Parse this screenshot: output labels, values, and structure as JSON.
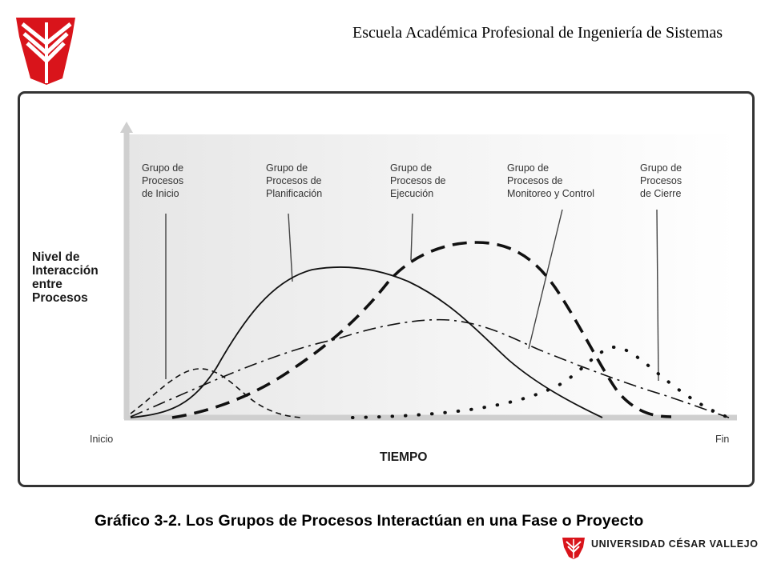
{
  "header": {
    "title": "Escuela Académica Profesional de Ingeniería de Sistemas"
  },
  "diagram": {
    "y_label": [
      "Nivel de",
      "Interacción",
      "entre",
      "Procesos"
    ],
    "x_label": "TIEMPO",
    "x_start": "Inicio",
    "x_end": "Fin",
    "groups": [
      {
        "name": "inicio",
        "label": [
          "Grupo de",
          "Procesos",
          "de Inicio"
        ],
        "line_style": "short-dash"
      },
      {
        "name": "planificacion",
        "label": [
          "Grupo de",
          "Procesos de",
          "Planificación"
        ],
        "line_style": "solid"
      },
      {
        "name": "ejecucion",
        "label": [
          "Grupo de",
          "Procesos de",
          "Ejecución"
        ],
        "line_style": "long-dash"
      },
      {
        "name": "monitoreo",
        "label": [
          "Grupo de",
          "Procesos de",
          "Monitoreo y Control"
        ],
        "line_style": "dash-dot"
      },
      {
        "name": "cierre",
        "label": [
          "Grupo de",
          "Procesos",
          "de Cierre"
        ],
        "line_style": "dotted"
      }
    ]
  },
  "caption": "Gráfico 3-2. Los Grupos de Procesos Interactúan en una Fase o Proyecto",
  "footer": {
    "university": "UNIVERSIDAD CÉSAR VALLEJO"
  },
  "colors": {
    "logo_red": "#d9141b",
    "curve": "#111111",
    "gradient_light": "#ffffff",
    "gradient_dark": "#e3e3e3"
  }
}
